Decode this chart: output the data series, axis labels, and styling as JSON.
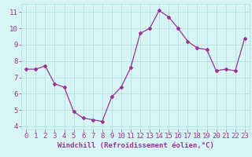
{
  "x": [
    0,
    1,
    2,
    3,
    4,
    5,
    6,
    7,
    8,
    9,
    10,
    11,
    12,
    13,
    14,
    15,
    16,
    17,
    18,
    19,
    20,
    21,
    22,
    23
  ],
  "y": [
    7.5,
    7.5,
    7.7,
    6.6,
    6.4,
    4.9,
    4.5,
    4.4,
    4.3,
    5.8,
    6.4,
    7.6,
    9.7,
    10.0,
    11.1,
    10.7,
    10.0,
    9.2,
    8.8,
    8.7,
    7.4,
    7.5,
    7.4,
    9.4
  ],
  "line_color": "#993399",
  "marker": "D",
  "marker_size": 2,
  "bg_color": "#d8f5f5",
  "grid_color": "#aadddd",
  "xlabel": "Windchill (Refroidissement éolien,°C)",
  "xlabel_color": "#993399",
  "tick_color": "#993399",
  "xlim": [
    -0.5,
    23.5
  ],
  "ylim": [
    3.8,
    11.5
  ],
  "yticks": [
    4,
    5,
    6,
    7,
    8,
    9,
    10,
    11
  ],
  "xticks": [
    0,
    1,
    2,
    3,
    4,
    5,
    6,
    7,
    8,
    9,
    10,
    11,
    12,
    13,
    14,
    15,
    16,
    17,
    18,
    19,
    20,
    21,
    22,
    23
  ],
  "font_size_xlabel": 6.5,
  "font_size_ticks": 6.5,
  "linewidth": 0.9
}
